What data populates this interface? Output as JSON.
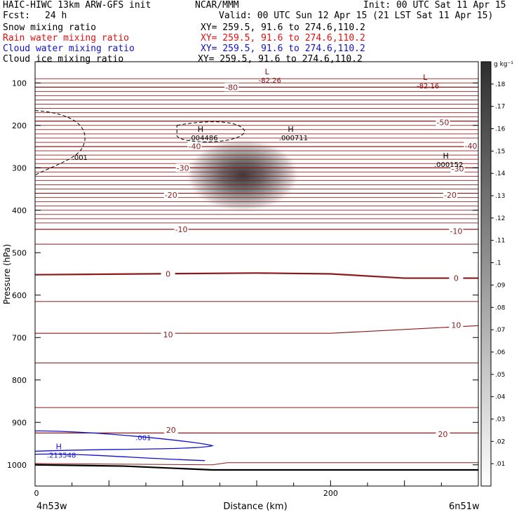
{
  "header": {
    "title": "HAIC-HIWC 13km ARW-GFS init",
    "org": "NCAR/MMM",
    "init": "Init: 00 UTC Sat 11 Apr 15",
    "fcst_label": "Fcst:",
    "fcst_value": "24 h",
    "valid": "Valid: 00 UTC Sun 12 Apr 15 (21 LST Sat 11 Apr 15)",
    "fields": [
      {
        "name": "Snow mixing ratio",
        "xy": "XY= 259.5, 91.6 to 274.6,110.2",
        "color": "#000000"
      },
      {
        "name": "Rain water mixing ratio",
        "xy": "XY= 259.5, 91.6 to 274.6,110.2",
        "color": "#e01010"
      },
      {
        "name": "Cloud water mixing ratio",
        "xy": "XY= 259.5, 91.6 to 274.6,110.2",
        "color": "#1010d0"
      },
      {
        "name": "Cloud ice mixing ratio",
        "xy": "XY= 259.5, 91.6 to 274.6,110.2",
        "color": "#000000"
      }
    ]
  },
  "chart_data": {
    "type": "cross-section",
    "xlabel": "Distance (km)",
    "ylabel": "Pressure (hPa)",
    "x_ticks": [
      0,
      200
    ],
    "x_range": [
      0,
      300
    ],
    "y_ticks": [
      100,
      200,
      300,
      400,
      500,
      600,
      700,
      800,
      900,
      1000
    ],
    "y_range": [
      1050,
      50
    ],
    "left_endpoint": "4n53w",
    "right_endpoint": "6n51w",
    "colorbar": {
      "unit": "g kg⁻¹",
      "ticks": [
        ".01",
        ".02",
        ".03",
        ".04",
        ".05",
        ".06",
        ".07",
        ".08",
        ".09",
        ".1",
        ".11",
        ".12",
        ".13",
        ".14",
        ".15",
        ".16",
        ".17",
        ".18"
      ]
    },
    "snow_max": {
      "x_km": 145,
      "p_hpa": 325,
      "value": 0.16
    },
    "temperature_contours": [
      {
        "label": "-80",
        "points": [
          [
            0,
            110
          ],
          [
            300,
            110
          ]
        ],
        "labels_at": [
          [
            133,
            110
          ]
        ]
      },
      {
        "label": "-50",
        "points": [
          [
            0,
            190
          ],
          [
            300,
            190
          ]
        ],
        "labels_at": [
          [
            276,
            193
          ]
        ]
      },
      {
        "label": "-40",
        "points": [
          [
            0,
            250
          ],
          [
            300,
            250
          ]
        ],
        "labels_at": [
          [
            108,
            249
          ],
          [
            295,
            248
          ]
        ]
      },
      {
        "label": "-30",
        "points": [
          [
            0,
            300
          ],
          [
            300,
            300
          ]
        ],
        "labels_at": [
          [
            100,
            300
          ],
          [
            286,
            302
          ]
        ]
      },
      {
        "label": "-20",
        "points": [
          [
            0,
            360
          ],
          [
            300,
            360
          ]
        ],
        "labels_at": [
          [
            92,
            364
          ],
          [
            281,
            364
          ]
        ]
      },
      {
        "label": "-10",
        "points": [
          [
            0,
            445
          ],
          [
            300,
            445
          ]
        ],
        "labels_at": [
          [
            99,
            445
          ],
          [
            285,
            449
          ]
        ]
      },
      {
        "label": "0",
        "points": [
          [
            0,
            552
          ],
          [
            150,
            548
          ],
          [
            200,
            550
          ],
          [
            250,
            560
          ],
          [
            300,
            560
          ]
        ],
        "labels_at": [
          [
            90,
            550
          ],
          [
            285,
            560
          ]
        ]
      },
      {
        "label": "10",
        "points": [
          [
            0,
            690
          ],
          [
            200,
            690
          ],
          [
            300,
            672
          ]
        ],
        "labels_at": [
          [
            90,
            693
          ],
          [
            285,
            671
          ]
        ]
      },
      {
        "label": "20",
        "points": [
          [
            0,
            925
          ],
          [
            300,
            925
          ]
        ],
        "labels_at": [
          [
            92,
            918
          ],
          [
            276,
            928
          ]
        ]
      }
    ],
    "extremes": [
      {
        "kind": "L",
        "value": "-82.26",
        "x_km": 157,
        "p_hpa": 80,
        "color": "#8b0000"
      },
      {
        "kind": "L",
        "value": "-82.16",
        "x_km": 264,
        "p_hpa": 93,
        "color": "#8b0000"
      },
      {
        "kind": "H",
        "value": ".004486",
        "x_km": 112,
        "p_hpa": 215,
        "color": "#000000"
      },
      {
        "kind": "H",
        "value": ".000711",
        "x_km": 173,
        "p_hpa": 215,
        "color": "#000000"
      },
      {
        "kind": "H",
        "value": ".000152",
        "x_km": 278,
        "p_hpa": 278,
        "color": "#000000"
      },
      {
        "kind": "H",
        "value": ".213548",
        "x_km": 16,
        "p_hpa": 963,
        "color": "#1010d0"
      }
    ],
    "cloud_ice_contour_label": ".001",
    "cloud_water_contour_label": ".001"
  }
}
